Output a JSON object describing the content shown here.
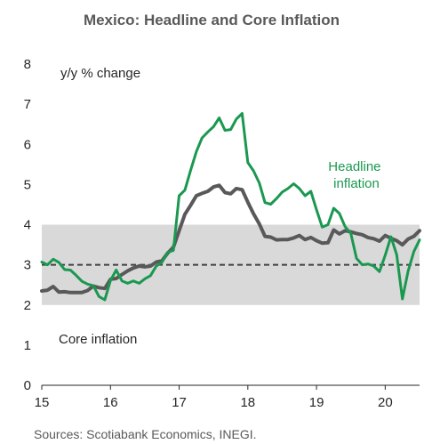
{
  "chart_data": {
    "type": "line",
    "title": "Mexico: Headline and Core Inflation",
    "ylabel": "y/y % change",
    "xlabel": "",
    "source": "Sources: Scotiabank Economics, INEGI.",
    "xlim": [
      2015,
      2020.5
    ],
    "ylim": [
      0,
      8
    ],
    "x_ticks": [
      {
        "value": 2015,
        "label": "15"
      },
      {
        "value": 2016,
        "label": "16"
      },
      {
        "value": 2017,
        "label": "17"
      },
      {
        "value": 2018,
        "label": "18"
      },
      {
        "value": 2019,
        "label": "19"
      },
      {
        "value": 2020,
        "label": "20"
      }
    ],
    "y_ticks": [
      0,
      1,
      2,
      3,
      4,
      5,
      6,
      7,
      8
    ],
    "grid": false,
    "target_band": {
      "low": 2,
      "high": 4,
      "color": "#d9d9d9"
    },
    "target_line": {
      "value": 3,
      "color": "#404040",
      "style": "dashed"
    },
    "series": [
      {
        "name": "Core inflation",
        "label": "Core inflation",
        "color": "#595959",
        "x": [
          2015.0,
          2015.083,
          2015.167,
          2015.25,
          2015.333,
          2015.417,
          2015.5,
          2015.583,
          2015.667,
          2015.75,
          2015.833,
          2015.917,
          2016.0,
          2016.083,
          2016.167,
          2016.25,
          2016.333,
          2016.417,
          2016.5,
          2016.583,
          2016.667,
          2016.75,
          2016.833,
          2016.917,
          2017.0,
          2017.083,
          2017.167,
          2017.25,
          2017.333,
          2017.417,
          2017.5,
          2017.583,
          2017.667,
          2017.75,
          2017.833,
          2017.917,
          2018.0,
          2018.083,
          2018.167,
          2018.25,
          2018.333,
          2018.417,
          2018.5,
          2018.583,
          2018.667,
          2018.75,
          2018.833,
          2018.917,
          2019.0,
          2019.083,
          2019.167,
          2019.25,
          2019.333,
          2019.417,
          2019.5,
          2019.583,
          2019.667,
          2019.75,
          2019.833,
          2019.917,
          2020.0,
          2020.083,
          2020.167,
          2020.25,
          2020.333,
          2020.417,
          2020.5
        ],
        "values": [
          2.35,
          2.37,
          2.46,
          2.32,
          2.33,
          2.31,
          2.31,
          2.31,
          2.36,
          2.47,
          2.43,
          2.41,
          2.64,
          2.66,
          2.76,
          2.85,
          2.92,
          2.97,
          2.95,
          2.97,
          3.07,
          3.1,
          3.29,
          3.44,
          3.85,
          4.26,
          4.48,
          4.72,
          4.78,
          4.83,
          4.94,
          4.98,
          4.8,
          4.77,
          4.9,
          4.87,
          4.56,
          4.27,
          4.02,
          3.71,
          3.69,
          3.62,
          3.63,
          3.63,
          3.67,
          3.73,
          3.63,
          3.68,
          3.6,
          3.54,
          3.55,
          3.87,
          3.77,
          3.85,
          3.82,
          3.78,
          3.75,
          3.68,
          3.65,
          3.59,
          3.73,
          3.66,
          3.6,
          3.5,
          3.64,
          3.71,
          3.85
        ]
      },
      {
        "name": "Headline inflation",
        "label": "Headline\ninflation",
        "color": "#1a9850",
        "x": [
          2015.0,
          2015.083,
          2015.167,
          2015.25,
          2015.333,
          2015.417,
          2015.5,
          2015.583,
          2015.667,
          2015.75,
          2015.833,
          2015.917,
          2016.0,
          2016.083,
          2016.167,
          2016.25,
          2016.333,
          2016.417,
          2016.5,
          2016.583,
          2016.667,
          2016.75,
          2016.833,
          2016.917,
          2017.0,
          2017.083,
          2017.167,
          2017.25,
          2017.333,
          2017.417,
          2017.5,
          2017.583,
          2017.667,
          2017.75,
          2017.833,
          2017.917,
          2018.0,
          2018.083,
          2018.167,
          2018.25,
          2018.333,
          2018.417,
          2018.5,
          2018.583,
          2018.667,
          2018.75,
          2018.833,
          2018.917,
          2019.0,
          2019.083,
          2019.167,
          2019.25,
          2019.333,
          2019.417,
          2019.5,
          2019.583,
          2019.667,
          2019.75,
          2019.833,
          2019.917,
          2020.0,
          2020.083,
          2020.167,
          2020.25,
          2020.333,
          2020.417,
          2020.5
        ],
        "values": [
          3.07,
          3.0,
          3.14,
          3.06,
          2.88,
          2.87,
          2.74,
          2.59,
          2.52,
          2.48,
          2.21,
          2.13,
          2.61,
          2.87,
          2.6,
          2.54,
          2.6,
          2.54,
          2.65,
          2.73,
          2.97,
          3.06,
          3.31,
          3.36,
          4.72,
          4.86,
          5.35,
          5.82,
          6.16,
          6.31,
          6.44,
          6.66,
          6.35,
          6.37,
          6.63,
          6.77,
          5.55,
          5.34,
          5.04,
          4.55,
          4.51,
          4.65,
          4.81,
          4.9,
          5.02,
          4.9,
          4.72,
          4.83,
          4.37,
          3.94,
          4.0,
          4.41,
          4.28,
          3.95,
          3.78,
          3.16,
          3.0,
          3.02,
          2.97,
          2.83,
          3.24,
          3.7,
          3.25,
          2.15,
          2.84,
          3.33,
          3.62
        ]
      }
    ]
  }
}
